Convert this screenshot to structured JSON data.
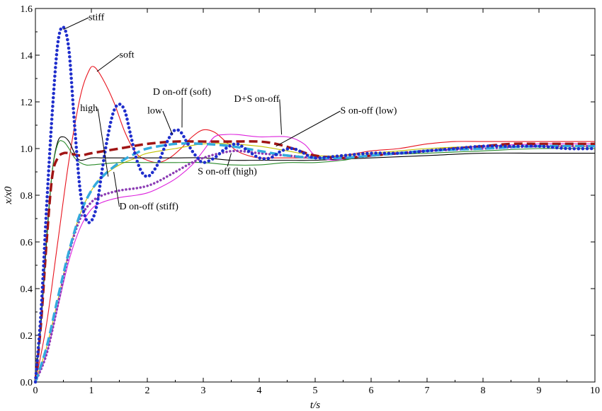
{
  "chart_data": {
    "type": "line",
    "title": "",
    "xlabel": "t/s",
    "ylabel": "x/x0",
    "xlim": [
      0,
      10
    ],
    "ylim": [
      0,
      1.6
    ],
    "xticks": [
      "0",
      "1",
      "2",
      "3",
      "4",
      "5",
      "6",
      "7",
      "8",
      "9",
      "10"
    ],
    "yticks": [
      "0.0",
      "0.2",
      "0.4",
      "0.6",
      "0.8",
      "1.0",
      "1.2",
      "1.4",
      "1.6"
    ],
    "grid": false,
    "series": [
      {
        "name": "stiff",
        "color": "#1f2ecc",
        "style": "dotted-thick",
        "points": [
          [
            0,
            0
          ],
          [
            0.1,
            0.3
          ],
          [
            0.2,
            0.75
          ],
          [
            0.3,
            1.15
          ],
          [
            0.4,
            1.45
          ],
          [
            0.5,
            1.52
          ],
          [
            0.6,
            1.42
          ],
          [
            0.7,
            1.1
          ],
          [
            0.8,
            0.82
          ],
          [
            0.9,
            0.7
          ],
          [
            1.0,
            0.69
          ],
          [
            1.1,
            0.76
          ],
          [
            1.2,
            0.92
          ],
          [
            1.3,
            1.06
          ],
          [
            1.4,
            1.16
          ],
          [
            1.5,
            1.19
          ],
          [
            1.6,
            1.16
          ],
          [
            1.7,
            1.06
          ],
          [
            1.8,
            0.96
          ],
          [
            1.9,
            0.9
          ],
          [
            2.0,
            0.88
          ],
          [
            2.1,
            0.9
          ],
          [
            2.2,
            0.94
          ],
          [
            2.3,
            1.0
          ],
          [
            2.4,
            1.05
          ],
          [
            2.5,
            1.08
          ],
          [
            2.6,
            1.07
          ],
          [
            2.7,
            1.03
          ],
          [
            2.8,
            0.99
          ],
          [
            2.9,
            0.96
          ],
          [
            3.0,
            0.94
          ],
          [
            3.2,
            0.96
          ],
          [
            3.4,
            1.0
          ],
          [
            3.6,
            1.02
          ],
          [
            3.8,
            0.99
          ],
          [
            4.0,
            0.96
          ],
          [
            4.2,
            0.96
          ],
          [
            4.4,
            0.99
          ],
          [
            4.6,
            1.0
          ],
          [
            4.8,
            0.98
          ],
          [
            5.0,
            0.96
          ],
          [
            5.5,
            0.97
          ],
          [
            6.0,
            0.98
          ],
          [
            6.5,
            0.98
          ],
          [
            7.0,
            0.99
          ],
          [
            7.5,
            1.0
          ],
          [
            8.0,
            1.01
          ],
          [
            8.5,
            1.01
          ],
          [
            9.0,
            1.01
          ],
          [
            9.5,
            1.0
          ],
          [
            10,
            1.0
          ]
        ]
      },
      {
        "name": "soft",
        "color": "#e8141e",
        "style": "thin",
        "points": [
          [
            0,
            0
          ],
          [
            0.2,
            0.25
          ],
          [
            0.4,
            0.6
          ],
          [
            0.6,
            0.95
          ],
          [
            0.8,
            1.22
          ],
          [
            0.95,
            1.33
          ],
          [
            1.05,
            1.35
          ],
          [
            1.2,
            1.3
          ],
          [
            1.4,
            1.2
          ],
          [
            1.6,
            1.07
          ],
          [
            1.8,
            0.98
          ],
          [
            2.0,
            0.95
          ],
          [
            2.2,
            0.94
          ],
          [
            2.4,
            0.96
          ],
          [
            2.6,
            1.0
          ],
          [
            2.8,
            1.05
          ],
          [
            3.0,
            1.08
          ],
          [
            3.2,
            1.07
          ],
          [
            3.4,
            1.03
          ],
          [
            3.6,
            0.99
          ],
          [
            3.8,
            0.97
          ],
          [
            4.0,
            0.96
          ],
          [
            4.3,
            0.96
          ],
          [
            4.6,
            0.96
          ],
          [
            5.0,
            0.96
          ],
          [
            5.5,
            0.97
          ],
          [
            6.0,
            0.99
          ],
          [
            6.5,
            1.0
          ],
          [
            7.0,
            1.02
          ],
          [
            7.5,
            1.03
          ],
          [
            8.0,
            1.03
          ],
          [
            8.5,
            1.03
          ],
          [
            9.0,
            1.03
          ],
          [
            9.5,
            1.03
          ],
          [
            10,
            1.03
          ]
        ]
      },
      {
        "name": "high",
        "color": "#000000",
        "style": "thin",
        "points": [
          [
            0,
            0
          ],
          [
            0.1,
            0.25
          ],
          [
            0.2,
            0.6
          ],
          [
            0.3,
            0.9
          ],
          [
            0.4,
            1.03
          ],
          [
            0.5,
            1.05
          ],
          [
            0.6,
            1.03
          ],
          [
            0.7,
            0.98
          ],
          [
            0.8,
            0.95
          ],
          [
            1.0,
            0.96
          ],
          [
            1.2,
            0.96
          ],
          [
            1.5,
            0.96
          ],
          [
            2.0,
            0.96
          ],
          [
            2.5,
            0.96
          ],
          [
            3.0,
            0.96
          ],
          [
            3.5,
            0.95
          ],
          [
            4.0,
            0.95
          ],
          [
            4.5,
            0.95
          ],
          [
            5.0,
            0.95
          ],
          [
            6.0,
            0.96
          ],
          [
            7.0,
            0.97
          ],
          [
            8.0,
            0.98
          ],
          [
            9.0,
            0.98
          ],
          [
            10,
            0.98
          ]
        ]
      },
      {
        "name": "low",
        "color": "#c0c000",
        "style": "thin",
        "points": [
          [
            0,
            0
          ],
          [
            0.2,
            0.15
          ],
          [
            0.4,
            0.35
          ],
          [
            0.6,
            0.56
          ],
          [
            0.8,
            0.72
          ],
          [
            1.0,
            0.82
          ],
          [
            1.2,
            0.88
          ],
          [
            1.5,
            0.93
          ],
          [
            1.8,
            0.96
          ],
          [
            2.0,
            0.98
          ],
          [
            2.5,
            1.0
          ],
          [
            3.0,
            1.02
          ],
          [
            3.5,
            1.02
          ],
          [
            4.0,
            1.01
          ],
          [
            4.5,
            0.99
          ],
          [
            5.0,
            0.97
          ],
          [
            5.5,
            0.97
          ],
          [
            6.0,
            0.98
          ],
          [
            6.5,
            0.99
          ],
          [
            7.0,
            1.0
          ],
          [
            8.0,
            1.01
          ],
          [
            9.0,
            1.01
          ],
          [
            10,
            1.01
          ]
        ]
      },
      {
        "name": "D on-off (soft)",
        "color": "#2a8a2a",
        "style": "thin",
        "points": [
          [
            0,
            0
          ],
          [
            0.1,
            0.28
          ],
          [
            0.2,
            0.62
          ],
          [
            0.3,
            0.9
          ],
          [
            0.4,
            1.02
          ],
          [
            0.5,
            1.03
          ],
          [
            0.6,
            1.0
          ],
          [
            0.7,
            0.96
          ],
          [
            0.8,
            0.94
          ],
          [
            0.9,
            0.93
          ],
          [
            1.0,
            0.93
          ],
          [
            1.5,
            0.94
          ],
          [
            2.0,
            0.94
          ],
          [
            2.5,
            0.94
          ],
          [
            3.0,
            0.94
          ],
          [
            3.5,
            0.93
          ],
          [
            4.0,
            0.93
          ],
          [
            4.5,
            0.94
          ],
          [
            5.0,
            0.94
          ],
          [
            5.5,
            0.95
          ],
          [
            6.0,
            0.97
          ],
          [
            7.0,
            0.98
          ],
          [
            8.0,
            0.99
          ],
          [
            9.0,
            1.0
          ],
          [
            10,
            1.0
          ]
        ]
      },
      {
        "name": "D+S on-off",
        "color": "#dd22dd",
        "style": "thin",
        "points": [
          [
            0,
            0
          ],
          [
            0.2,
            0.12
          ],
          [
            0.4,
            0.32
          ],
          [
            0.6,
            0.52
          ],
          [
            0.8,
            0.66
          ],
          [
            1.0,
            0.74
          ],
          [
            1.2,
            0.77
          ],
          [
            1.5,
            0.79
          ],
          [
            1.8,
            0.8
          ],
          [
            2.0,
            0.81
          ],
          [
            2.2,
            0.83
          ],
          [
            2.5,
            0.87
          ],
          [
            2.8,
            0.93
          ],
          [
            3.0,
            0.99
          ],
          [
            3.2,
            1.05
          ],
          [
            3.4,
            1.06
          ],
          [
            3.6,
            1.06
          ],
          [
            4.0,
            1.05
          ],
          [
            4.5,
            1.05
          ],
          [
            4.8,
            1.02
          ],
          [
            5.0,
            0.97
          ],
          [
            5.3,
            0.95
          ],
          [
            5.6,
            0.96
          ],
          [
            6.0,
            0.97
          ],
          [
            6.5,
            0.98
          ],
          [
            7.0,
            0.99
          ],
          [
            8.0,
            1.01
          ],
          [
            9.0,
            1.02
          ],
          [
            10,
            1.02
          ]
        ]
      },
      {
        "name": "S on-off (high)",
        "color": "#8c3cb4",
        "style": "dotted-medium",
        "points": [
          [
            0,
            0
          ],
          [
            0.2,
            0.12
          ],
          [
            0.4,
            0.33
          ],
          [
            0.6,
            0.55
          ],
          [
            0.8,
            0.7
          ],
          [
            1.0,
            0.77
          ],
          [
            1.2,
            0.8
          ],
          [
            1.5,
            0.82
          ],
          [
            1.8,
            0.83
          ],
          [
            2.0,
            0.84
          ],
          [
            2.2,
            0.86
          ],
          [
            2.5,
            0.9
          ],
          [
            2.8,
            0.94
          ],
          [
            3.0,
            0.96
          ],
          [
            3.3,
            0.98
          ],
          [
            3.6,
            0.99
          ],
          [
            4.0,
            0.98
          ],
          [
            4.5,
            0.97
          ],
          [
            5.0,
            0.96
          ],
          [
            5.5,
            0.96
          ],
          [
            6.0,
            0.97
          ],
          [
            6.5,
            0.98
          ],
          [
            7.0,
            0.99
          ],
          [
            8.0,
            1.0
          ],
          [
            9.0,
            1.01
          ],
          [
            10,
            1.01
          ]
        ]
      },
      {
        "name": "S on-off (low)",
        "color": "#a01414",
        "style": "dashed-thick",
        "points": [
          [
            0,
            0
          ],
          [
            0.1,
            0.25
          ],
          [
            0.2,
            0.6
          ],
          [
            0.3,
            0.88
          ],
          [
            0.4,
            0.96
          ],
          [
            0.5,
            0.98
          ],
          [
            0.6,
            0.98
          ],
          [
            0.8,
            0.97
          ],
          [
            1.0,
            0.98
          ],
          [
            1.5,
            1.0
          ],
          [
            2.0,
            1.02
          ],
          [
            2.5,
            1.03
          ],
          [
            3.0,
            1.03
          ],
          [
            3.5,
            1.03
          ],
          [
            4.0,
            1.03
          ],
          [
            4.3,
            1.02
          ],
          [
            4.6,
            1.0
          ],
          [
            5.0,
            0.97
          ],
          [
            5.5,
            0.96
          ],
          [
            6.0,
            0.97
          ],
          [
            6.5,
            0.98
          ],
          [
            7.0,
            0.99
          ],
          [
            7.5,
            1.0
          ],
          [
            8.0,
            1.01
          ],
          [
            8.5,
            1.02
          ],
          [
            9.0,
            1.02
          ],
          [
            9.5,
            1.02
          ],
          [
            10,
            1.02
          ]
        ]
      },
      {
        "name": "D on-off (stiff)",
        "color": "#33aadd",
        "style": "dashed-thick",
        "points": [
          [
            0,
            0
          ],
          [
            0.2,
            0.15
          ],
          [
            0.4,
            0.36
          ],
          [
            0.6,
            0.56
          ],
          [
            0.8,
            0.72
          ],
          [
            1.0,
            0.82
          ],
          [
            1.2,
            0.88
          ],
          [
            1.5,
            0.94
          ],
          [
            1.8,
            0.98
          ],
          [
            2.0,
            1.0
          ],
          [
            2.5,
            1.02
          ],
          [
            3.0,
            1.02
          ],
          [
            3.5,
            1.01
          ],
          [
            4.0,
            0.99
          ],
          [
            4.5,
            0.97
          ],
          [
            5.0,
            0.96
          ],
          [
            5.5,
            0.96
          ],
          [
            6.0,
            0.97
          ],
          [
            6.5,
            0.98
          ],
          [
            7.0,
            0.99
          ],
          [
            8.0,
            1.0
          ],
          [
            9.0,
            1.01
          ],
          [
            10,
            1.01
          ]
        ]
      }
    ],
    "annotations": [
      {
        "text": "stiff",
        "x": 0.95,
        "y": 1.55,
        "to": [
          0.5,
          1.51
        ]
      },
      {
        "text": "soft",
        "x": 1.5,
        "y": 1.39,
        "to": [
          1.1,
          1.33
        ]
      },
      {
        "text": "D on-off (soft)",
        "x": 2.1,
        "y": 1.23,
        "to": [
          2.62,
          1.09
        ]
      },
      {
        "text": "D+S on-off",
        "x": 3.55,
        "y": 1.2,
        "to": [
          4.4,
          1.06
        ]
      },
      {
        "text": "high",
        "x": 0.8,
        "y": 1.16,
        "to": [
          1.3,
          0.88
        ]
      },
      {
        "text": "low",
        "x": 2.0,
        "y": 1.15,
        "to": [
          2.45,
          1.06
        ]
      },
      {
        "text": "S on-off (low)",
        "x": 5.45,
        "y": 1.15,
        "to": [
          4.3,
          1.01
        ]
      },
      {
        "text": "S on-off (high)",
        "x": 2.9,
        "y": 0.89,
        "to": [
          3.5,
          0.98
        ]
      },
      {
        "text": "D on-off (stiff)",
        "x": 1.5,
        "y": 0.74,
        "to": [
          1.4,
          0.9
        ]
      }
    ]
  }
}
